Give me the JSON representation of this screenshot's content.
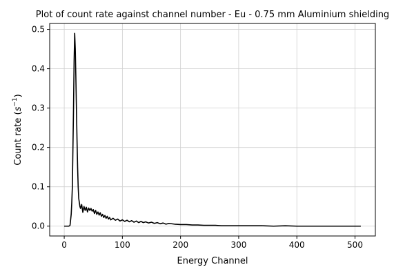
{
  "chart_data": {
    "type": "line",
    "title": "Plot of count rate against channel number - Eu - 0.75 mm Aluminium shielding",
    "xlabel": "Energy Channel",
    "ylabel_prefix": "Count rate (",
    "ylabel_unit_base": "s",
    "ylabel_unit_exp": "−1",
    "ylabel_suffix": ")",
    "xlim": [
      -25,
      535
    ],
    "ylim": [
      -0.025,
      0.515
    ],
    "xticks": [
      0,
      100,
      200,
      300,
      400,
      500
    ],
    "yticks": [
      0.0,
      0.1,
      0.2,
      0.3,
      0.4,
      0.5
    ],
    "xtick_labels": [
      "0",
      "100",
      "200",
      "300",
      "400",
      "500"
    ],
    "ytick_labels": [
      "0.0",
      "0.1",
      "0.2",
      "0.3",
      "0.4",
      "0.5"
    ],
    "grid": true,
    "series": [
      {
        "color": "#000000",
        "x": [
          0,
          2,
          4,
          6,
          8,
          10,
          12,
          13,
          14,
          15,
          16,
          17,
          18,
          19,
          20,
          21,
          22,
          23,
          24,
          25,
          26,
          27,
          28,
          30,
          32,
          34,
          36,
          38,
          40,
          42,
          44,
          46,
          48,
          50,
          52,
          54,
          56,
          58,
          60,
          62,
          64,
          66,
          68,
          70,
          72,
          74,
          76,
          78,
          80,
          84,
          88,
          92,
          96,
          100,
          104,
          108,
          112,
          116,
          120,
          124,
          128,
          132,
          136,
          140,
          145,
          150,
          155,
          160,
          165,
          170,
          175,
          180,
          190,
          200,
          210,
          220,
          230,
          240,
          250,
          260,
          270,
          280,
          290,
          300,
          320,
          340,
          360,
          380,
          400,
          420,
          440,
          460,
          480,
          500,
          510
        ],
        "y": [
          0.0,
          0.0,
          0.0,
          0.0,
          0.0,
          0.002,
          0.03,
          0.06,
          0.1,
          0.2,
          0.3,
          0.42,
          0.49,
          0.45,
          0.38,
          0.3,
          0.22,
          0.15,
          0.1,
          0.07,
          0.06,
          0.05,
          0.045,
          0.055,
          0.035,
          0.05,
          0.04,
          0.048,
          0.036,
          0.046,
          0.04,
          0.045,
          0.038,
          0.042,
          0.032,
          0.04,
          0.03,
          0.036,
          0.028,
          0.034,
          0.025,
          0.03,
          0.022,
          0.027,
          0.02,
          0.025,
          0.018,
          0.022,
          0.016,
          0.02,
          0.015,
          0.018,
          0.013,
          0.016,
          0.012,
          0.015,
          0.011,
          0.014,
          0.01,
          0.013,
          0.009,
          0.012,
          0.009,
          0.011,
          0.008,
          0.01,
          0.007,
          0.009,
          0.006,
          0.008,
          0.005,
          0.007,
          0.005,
          0.004,
          0.004,
          0.003,
          0.003,
          0.002,
          0.002,
          0.002,
          0.001,
          0.001,
          0.001,
          0.001,
          0.001,
          0.001,
          0.0,
          0.001,
          0.0,
          0.0,
          0.0,
          0.0,
          0.0,
          0.0,
          0.0
        ]
      }
    ]
  }
}
